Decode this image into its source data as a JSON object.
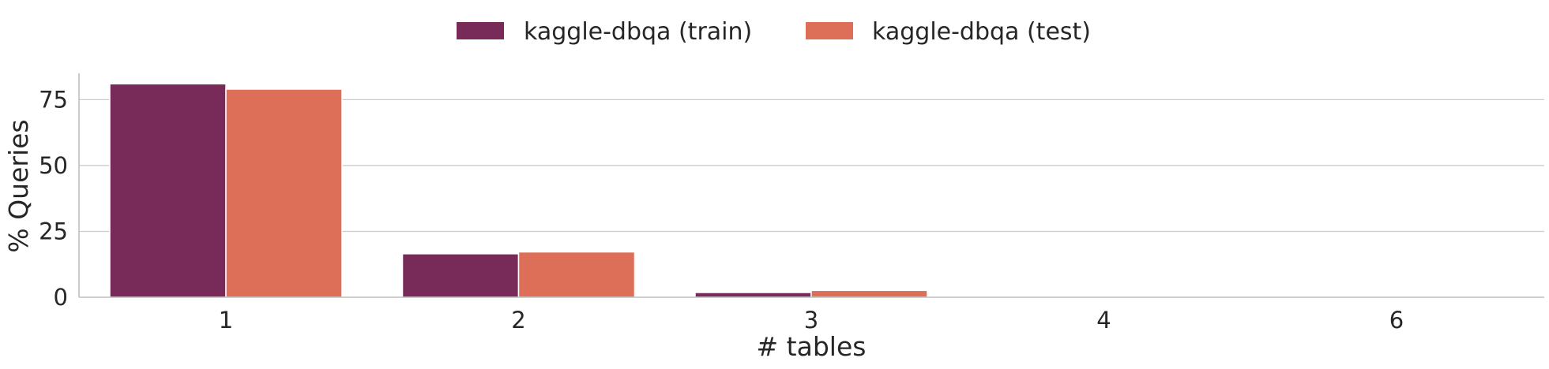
{
  "chart_data": {
    "type": "bar",
    "xlabel": "# tables",
    "ylabel": "% Queries",
    "categories": [
      "1",
      "2",
      "3",
      "4",
      "6"
    ],
    "ylim": [
      0,
      85
    ],
    "yticks": [
      0,
      25,
      50,
      75
    ],
    "grid": true,
    "legend_position": "top-center",
    "series": [
      {
        "name": "kaggle-dbqa (train)",
        "color": "#782a59",
        "values": [
          81.0,
          16.5,
          1.8,
          0.3,
          0.3
        ]
      },
      {
        "name": "kaggle-dbqa (test)",
        "color": "#dd6e57",
        "values": [
          79.0,
          17.2,
          2.6,
          0.3,
          0.0
        ]
      }
    ]
  }
}
